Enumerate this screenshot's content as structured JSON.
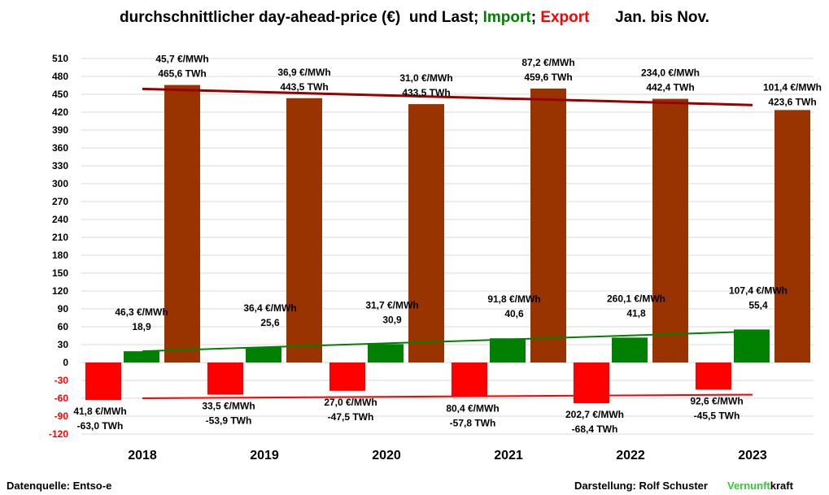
{
  "title": {
    "part1": "durchschnittlicher day-ahead-price (€)  und Last; ",
    "import": "Import",
    "sep": "; ",
    "export": "Export",
    "period": "      Jan. bis Nov."
  },
  "footer": {
    "source": "Datenquelle: Entso-e",
    "credit": "Darstellung:  Rolf Schuster",
    "brand_a": "Vernunft",
    "brand_b": "kraft"
  },
  "colors": {
    "load": "#993300",
    "import": "#008000",
    "export": "#ff0000",
    "trend_load": "#990000",
    "trend_import": "#008000",
    "trend_export": "#ff0000",
    "grid": "#d9d9d9",
    "negative_tick": "#ff0000"
  },
  "chart_data": {
    "type": "bar",
    "categories": [
      "2018",
      "2019",
      "2020",
      "2021",
      "2022",
      "2023"
    ],
    "ylim": [
      -120,
      510
    ],
    "yticks": [
      510,
      480,
      450,
      420,
      390,
      360,
      330,
      300,
      270,
      240,
      210,
      180,
      150,
      120,
      90,
      60,
      30,
      0,
      -30,
      -60,
      -90,
      -120
    ],
    "grid": true,
    "series": [
      {
        "key": "export",
        "values": [
          -63.0,
          -53.9,
          -47.5,
          -57.8,
          -68.4,
          -45.5
        ],
        "labels": [
          [
            "41,8 €/MWh",
            "-63,0 TWh"
          ],
          [
            "33,5 €/MWh",
            "-53,9 TWh"
          ],
          [
            "27,0 €/MWh",
            "-47,5 TWh"
          ],
          [
            "80,4 €/MWh",
            "-57,8 TWh"
          ],
          [
            "202,7 €/MWh",
            "-68,4 TWh"
          ],
          [
            "92,6 €/MWh",
            "-45,5 TWh"
          ]
        ]
      },
      {
        "key": "import",
        "values": [
          18.9,
          25.6,
          30.9,
          40.6,
          41.8,
          55.4
        ],
        "labels": [
          [
            "46,3 €/MWh",
            "18,9"
          ],
          [
            "36,4 €/MWh",
            "25,6"
          ],
          [
            "31,7 €/MWh",
            "30,9"
          ],
          [
            "91,8 €/MWh",
            "40,6"
          ],
          [
            "260,1 €/MWh",
            "41,8"
          ],
          [
            "107,4 €/MWh",
            "55,4"
          ]
        ]
      },
      {
        "key": "load",
        "values": [
          465.6,
          443.5,
          433.5,
          459.6,
          442.4,
          423.6
        ],
        "labels": [
          [
            "45,7 €/MWh",
            "465,6 TWh"
          ],
          [
            "36,9 €/MWh",
            "443,5 TWh"
          ],
          [
            "31,0 €/MWh",
            "433,5 TWh"
          ],
          [
            "87,2 €/MWh",
            "459,6 TWh"
          ],
          [
            "234,0 €/MWh",
            "442,4 TWh"
          ],
          [
            "101,4 €/MWh",
            "423,6 TWh"
          ]
        ]
      }
    ],
    "trendlines": [
      {
        "key": "load",
        "from": 459,
        "to": 432
      },
      {
        "key": "import",
        "from": 19,
        "to": 52
      },
      {
        "key": "export",
        "from": -60,
        "to": -54
      }
    ]
  }
}
